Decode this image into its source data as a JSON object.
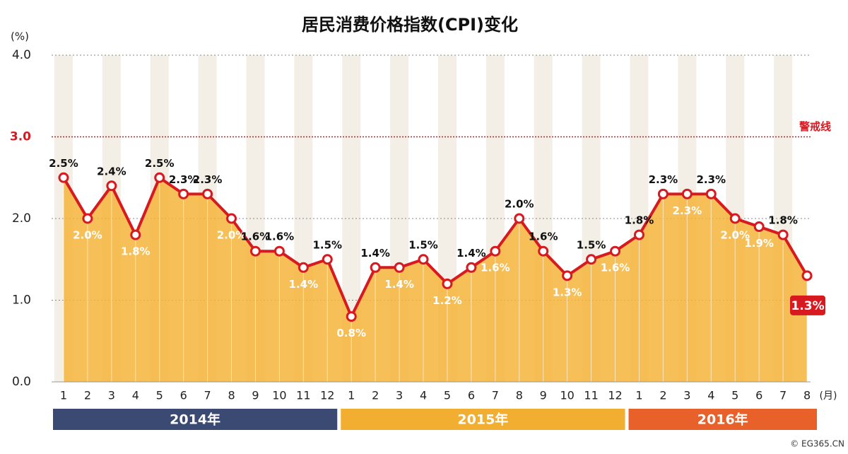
{
  "chart_data": {
    "type": "line",
    "title": "居民消费价格指数(CPI)变化",
    "y_unit": "(%)",
    "x_unit": "(月)",
    "categories": [
      "1",
      "2",
      "3",
      "4",
      "5",
      "6",
      "7",
      "8",
      "9",
      "10",
      "11",
      "12",
      "1",
      "2",
      "3",
      "4",
      "5",
      "6",
      "7",
      "8",
      "9",
      "10",
      "11",
      "12",
      "1",
      "2",
      "3",
      "4",
      "5",
      "6",
      "7",
      "8"
    ],
    "series": [
      {
        "name": "CPI",
        "color": "#d71920",
        "fill": "#f5b43a",
        "values": [
          2.5,
          2.0,
          2.4,
          1.8,
          2.5,
          2.3,
          2.3,
          2.0,
          1.6,
          1.6,
          1.4,
          1.5,
          0.8,
          1.4,
          1.4,
          1.5,
          1.2,
          1.4,
          1.6,
          2.0,
          1.6,
          1.3,
          1.5,
          1.6,
          1.8,
          2.3,
          2.3,
          2.3,
          2.0,
          1.9,
          1.8,
          1.3
        ],
        "value_labels": [
          "2.5%",
          "2.0%",
          "2.4%",
          "1.8%",
          "2.5%",
          "2.3%",
          "2.3%",
          "2.0%",
          "1.6%",
          "1.6%",
          "1.4%",
          "1.5%",
          "0.8%",
          "1.4%",
          "1.4%",
          "1.5%",
          "1.2%",
          "1.4%",
          "1.6%",
          "2.0%",
          "1.6%",
          "1.3%",
          "1.5%",
          "1.6%",
          "1.8%",
          "2.3%",
          "2.3%",
          "2.3%",
          "2.0%",
          "1.9%",
          "1.8%",
          "1.3%"
        ]
      }
    ],
    "ylim": [
      0,
      4
    ],
    "yticks": [
      {
        "value": 0,
        "label": "0.0"
      },
      {
        "value": 1,
        "label": "1.0"
      },
      {
        "value": 2,
        "label": "2.0"
      },
      {
        "value": 3,
        "label": "3.0"
      },
      {
        "value": 4,
        "label": "4.0"
      }
    ],
    "reference_line": {
      "value": 3,
      "label": "警戒线",
      "color": "#d71920"
    },
    "years": [
      {
        "label": "2014年",
        "color": "#3b4a72"
      },
      {
        "label": "2015年",
        "color": "#f2ae30"
      },
      {
        "label": "2016年",
        "color": "#e8602a"
      }
    ],
    "source": "© EG365.CN"
  }
}
